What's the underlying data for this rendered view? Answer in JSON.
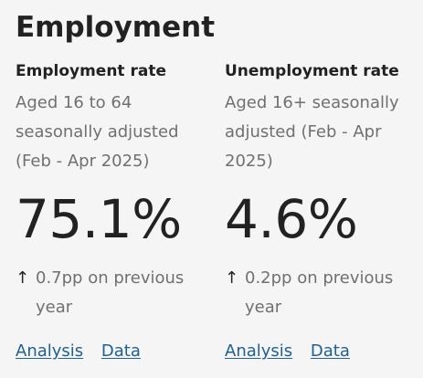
{
  "section": {
    "title": "Employment"
  },
  "stats": [
    {
      "heading": "Employment rate",
      "description": "Aged 16 to 64 seasonally adjusted (Feb - Apr 2025)",
      "value": "75.1%",
      "arrow": "↑",
      "arrow_icon": "arrow-up-icon",
      "change": "0.7pp on previous year",
      "links": [
        "Analysis",
        "Data"
      ]
    },
    {
      "heading": "Unemployment rate",
      "description": "Aged 16+ seasonally adjusted (Feb - Apr 2025)",
      "value": "4.6%",
      "arrow": "↑",
      "arrow_icon": "arrow-up-icon",
      "change": "0.2pp on previous year",
      "links": [
        "Analysis",
        "Data"
      ]
    }
  ],
  "colors": {
    "background": "#f5f5f6",
    "text": "#222222",
    "muted_text": "#707071",
    "link": "#206095"
  }
}
